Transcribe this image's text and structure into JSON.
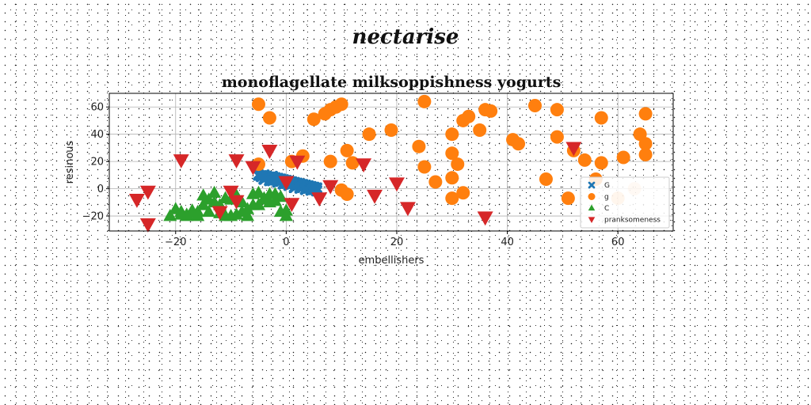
{
  "figure_title": "nectarise",
  "chart_data": {
    "type": "scatter",
    "title": "monoflagellate milksoppishness yogurts",
    "xlabel": "embellishers",
    "ylabel": "resinous",
    "xlim": [
      -32,
      70
    ],
    "ylim": [
      -31,
      70
    ],
    "xticks": [
      -20,
      0,
      20,
      40,
      60
    ],
    "yticks": [
      -20,
      0,
      20,
      40,
      60
    ],
    "grid": true,
    "legend_position": "lower-right",
    "series": [
      {
        "name": "G",
        "marker": "x",
        "color": "#1f77b4",
        "x": [
          -5,
          -4.5,
          -4,
          -3.5,
          -3,
          -2.5,
          -2,
          -1.5,
          -1,
          -0.5,
          0,
          0.5,
          1,
          1.5,
          2,
          2.5,
          3,
          3.5,
          4,
          4.5,
          5,
          5.5,
          -4,
          -3,
          -2,
          -1,
          0,
          1,
          2,
          3,
          4,
          5,
          -3.5,
          -1.5,
          0.5,
          2.5,
          4.5,
          -4.5,
          -2.5,
          -0.5,
          1.5,
          3.5,
          5.5
        ],
        "y": [
          10,
          9.5,
          10,
          9,
          8.5,
          9,
          8,
          7.5,
          7,
          6.5,
          6,
          5.5,
          5,
          4.5,
          4,
          3.5,
          3,
          2.5,
          2,
          1.5,
          1,
          0.5,
          7,
          6,
          6.5,
          5.5,
          4,
          3.5,
          2.5,
          1.5,
          0.5,
          -0.5,
          8.5,
          5,
          2.5,
          0.5,
          -1,
          9,
          6,
          3.5,
          1,
          -0.5,
          -1.5
        ]
      },
      {
        "name": "g",
        "marker": "o",
        "color": "#ff7f0e",
        "x": [
          -5,
          -3,
          -5,
          3,
          1,
          5,
          7,
          8,
          9,
          10,
          11,
          12,
          8,
          10,
          11,
          15,
          19,
          24,
          25,
          25,
          27,
          30,
          30,
          30,
          30,
          31,
          32,
          32,
          33,
          35,
          36,
          37,
          41,
          42,
          45,
          47,
          49,
          49,
          51,
          52,
          54,
          56,
          57,
          57,
          60,
          61,
          63,
          64,
          65,
          65,
          65
        ],
        "y": [
          62,
          52,
          18,
          24,
          20,
          51,
          55,
          58,
          60,
          62,
          28,
          19,
          20,
          -1,
          -4,
          40,
          43,
          31,
          16,
          64,
          5,
          40,
          26,
          8,
          -7,
          18,
          -3,
          50,
          53,
          43,
          58,
          57,
          36,
          33,
          61,
          7,
          38,
          58,
          -7,
          28,
          21,
          7,
          52,
          19,
          -7,
          23,
          0,
          40,
          25,
          33,
          55
        ],
        "opacities": [
          1,
          1,
          1,
          1,
          1,
          1,
          1,
          1,
          1,
          1,
          1,
          1,
          1,
          1,
          1,
          1,
          1,
          1,
          1,
          1,
          1,
          1,
          1,
          1,
          1,
          1,
          1,
          1,
          1,
          1,
          1,
          1,
          1,
          1,
          1,
          1,
          1,
          1,
          1,
          1,
          1,
          1,
          1,
          1,
          0.5,
          1,
          0.3,
          1,
          1,
          1,
          1
        ]
      },
      {
        "name": "C",
        "marker": "^",
        "color": "#2ca02c",
        "x": [
          -21,
          -19,
          -18,
          -17,
          -16,
          -15,
          -14,
          -13,
          -12,
          -11,
          -10,
          -9,
          -8,
          -7,
          -6,
          -5,
          -4,
          -3,
          -2,
          -1,
          0,
          -20,
          -18,
          -16,
          -14,
          -12,
          -10,
          -8,
          -6,
          -4,
          -2,
          0,
          -19,
          -15,
          -11,
          -7,
          -3,
          -17,
          -13,
          -9,
          -5,
          -1
        ],
        "y": [
          -20,
          -17,
          -19,
          -18,
          -20,
          -5,
          -17,
          -3,
          -12,
          -20,
          -8,
          -5,
          -10,
          -15,
          -4,
          -3,
          -7,
          -10,
          -4,
          -17,
          -20,
          -15,
          -20,
          -17,
          -8,
          -18,
          -20,
          -17,
          -12,
          -8,
          -9,
          -16,
          -19,
          -12,
          -7,
          -20,
          -4,
          -16,
          -10,
          -19,
          -12,
          -6
        ]
      },
      {
        "name": "pranksomeness",
        "marker": "v",
        "color": "#d62728",
        "x": [
          -27,
          -25,
          -25,
          -19,
          -12,
          -10,
          -9,
          -9,
          -6,
          -3,
          0,
          1,
          2,
          6,
          8,
          14,
          16,
          20,
          22,
          36,
          52
        ],
        "y": [
          -8,
          -2,
          -26,
          21,
          -17,
          -2,
          -9,
          21,
          16,
          28,
          5,
          -11,
          20,
          -7,
          2,
          18,
          -5,
          4,
          -14,
          -21,
          30
        ]
      }
    ]
  }
}
